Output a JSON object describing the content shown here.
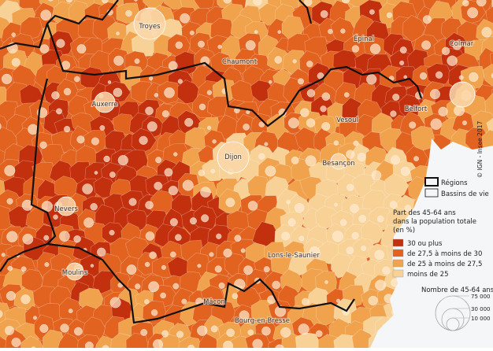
{
  "map": {
    "cities": [
      "Troyes",
      "Épinal",
      "Chaumont",
      "Colmar",
      "Auxerre",
      "Vesoul",
      "Belfort",
      "Dijon",
      "Besançon",
      "Nevers",
      "Lons-le-Saunier",
      "Moulins",
      "Mâcon",
      "Bourg-en-Bresse"
    ],
    "copyright": "© IGN - Insee 2017",
    "legend": {
      "boundaries": [
        "Régions",
        "Bassins de vie"
      ],
      "title": [
        "Part des 45-64 ans",
        "dans la population totale",
        "(en %)"
      ],
      "classes": [
        {
          "label": "30 ou plus",
          "color": "#c3300e"
        },
        {
          "label": "de 27,5 à moins de 30",
          "color": "#e2621f"
        },
        {
          "label": "de 25 à moins de 27,5",
          "color": "#f0a34c"
        },
        {
          "label": "moins de 25",
          "color": "#f8d196"
        }
      ],
      "size_title": "Nombre de 45-64 ans",
      "sizes": [
        "75 000",
        "30 000",
        "10 000"
      ]
    }
  }
}
